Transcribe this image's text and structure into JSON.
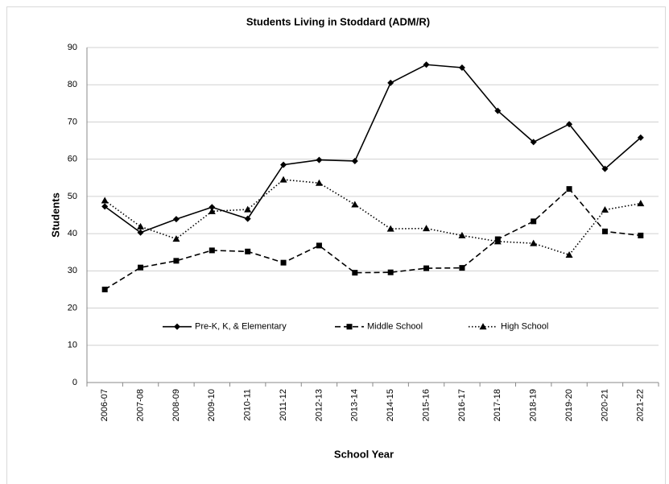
{
  "chart_data": {
    "type": "line",
    "title": "Students Living in Stoddard (ADM/R)",
    "x_label": "School Year",
    "y_label": "Students",
    "categories": [
      "2006-07",
      "2007-08",
      "2008-09",
      "2009-10",
      "2010-11",
      "2011-12",
      "2012-13",
      "2013-14",
      "2014-15",
      "2015-16",
      "2016-17",
      "2017-18",
      "2018-19",
      "2019-20",
      "2020-21",
      "2021-22"
    ],
    "series": [
      {
        "name": "Pre-K, K, & Elementary",
        "color": "#000000",
        "line_style": "solid",
        "marker": "diamond",
        "values": [
          47.3,
          40.3,
          43.9,
          47.1,
          44.0,
          58.5,
          59.8,
          59.5,
          80.5,
          85.4,
          84.6,
          73.0,
          64.6,
          69.4,
          57.4,
          65.8
        ]
      },
      {
        "name": "Middle School",
        "color": "#000000",
        "line_style": "dashed",
        "marker": "square",
        "values": [
          25.0,
          30.9,
          32.7,
          35.5,
          35.2,
          32.2,
          36.8,
          29.5,
          29.6,
          30.7,
          30.8,
          38.5,
          43.3,
          52.0,
          40.6,
          39.5
        ]
      },
      {
        "name": "High School",
        "color": "#000000",
        "line_style": "dotted",
        "marker": "triangle",
        "values": [
          48.9,
          41.9,
          38.6,
          46.0,
          46.5,
          54.5,
          53.6,
          47.8,
          41.3,
          41.4,
          39.5,
          37.9,
          37.4,
          34.3,
          46.4,
          48.1
        ]
      }
    ],
    "ylim": [
      0,
      90
    ],
    "yticks": [
      0,
      10,
      20,
      30,
      40,
      50,
      60,
      70,
      80,
      90
    ],
    "grid": true,
    "legend": "lower-center"
  }
}
